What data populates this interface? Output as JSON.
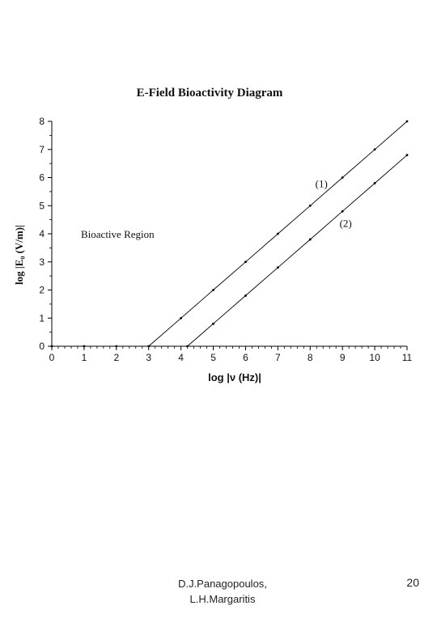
{
  "chart_data": {
    "type": "line",
    "title": "E-Field Bioactivity Diagram",
    "xlabel": "log |ν (Hz)|",
    "ylabel": "log |E₀ (V/m)|",
    "xlim": [
      0,
      11
    ],
    "ylim": [
      0,
      8
    ],
    "xticks": [
      0,
      1,
      2,
      3,
      4,
      5,
      6,
      7,
      8,
      9,
      10,
      11
    ],
    "yticks": [
      0,
      1,
      2,
      3,
      4,
      5,
      6,
      7,
      8
    ],
    "grid": false,
    "region_label": "Bioactive Region",
    "series": [
      {
        "name": "(1)",
        "x": [
          0,
          1,
          2,
          3,
          4,
          5,
          6,
          7,
          8,
          9,
          10,
          11
        ],
        "y": [
          0,
          0,
          0,
          0,
          1,
          2,
          3,
          4,
          5,
          6,
          7,
          8
        ]
      },
      {
        "name": "(2)",
        "x": [
          4.2,
          5,
          6,
          7,
          8,
          9,
          10,
          11
        ],
        "y": [
          0,
          0.8,
          1.8,
          2.8,
          3.8,
          4.8,
          5.8,
          6.8
        ]
      }
    ]
  },
  "footer": {
    "author_line1": "D.J.Panagopoulos,",
    "author_line2": "L.H.Margaritis",
    "page_number": "20"
  }
}
